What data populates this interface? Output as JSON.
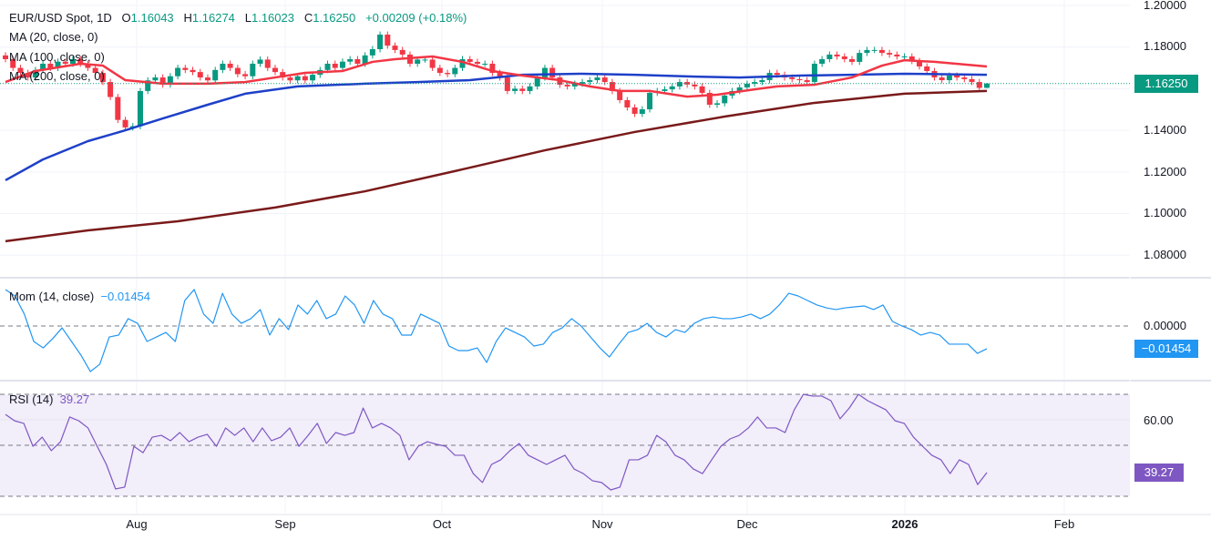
{
  "header": {
    "symbol": "EUR/USD Spot, 1D",
    "open_label": "O",
    "open": "1.16043",
    "high_label": "H",
    "high": "1.16274",
    "low_label": "L",
    "low": "1.16023",
    "close_label": "C",
    "close": "1.16250",
    "change": "+0.00209 (+0.18%)"
  },
  "indicators": {
    "ma20": "MA (20, close, 0)",
    "ma100": "MA (100, close, 0)",
    "ma200": "MA (200, close, 0)",
    "mom": "Mom (14, close)",
    "mom_value": "−0.01454",
    "rsi": "RSI (14)",
    "rsi_value": "39.27"
  },
  "colors": {
    "up": "#089981",
    "down": "#f23645",
    "ma20": "#f23645",
    "ma100": "#1e40c8",
    "ma200": "#7a1a1a",
    "mom": "#2196f3",
    "rsi": "#7e57c2",
    "rsi_band": "#f2eefa"
  },
  "chart_data": [
    {
      "type": "candlestick",
      "title": "EUR/USD Spot, 1D",
      "ylim": [
        1.07,
        1.2
      ],
      "y_ticks": [
        "1.20000",
        "1.18000",
        "1.14000",
        "1.12000",
        "1.10000",
        "1.08000"
      ],
      "last_price_label": "1.16250",
      "last_candle": {
        "open": 1.16043,
        "high": 1.16274,
        "low": 1.16023,
        "close": 1.1625
      },
      "closes": [
        1.1742,
        1.17,
        1.1676,
        1.1654,
        1.169,
        1.172,
        1.17,
        1.173,
        1.172,
        1.1742,
        1.172,
        1.17,
        1.1676,
        1.1632,
        1.156,
        1.145,
        1.1414,
        1.142,
        1.1589,
        1.164,
        1.1654,
        1.162,
        1.166,
        1.17,
        1.169,
        1.168,
        1.1654,
        1.164,
        1.169,
        1.172,
        1.17,
        1.167,
        1.166,
        1.172,
        1.174,
        1.17,
        1.168,
        1.1654,
        1.164,
        1.166,
        1.164,
        1.1667,
        1.169,
        1.172,
        1.17,
        1.173,
        1.1742,
        1.172,
        1.176,
        1.179,
        1.186,
        1.1807,
        1.1786,
        1.1764,
        1.172,
        1.174,
        1.174,
        1.17,
        1.1676,
        1.167,
        1.17,
        1.1742,
        1.1729,
        1.172,
        1.172,
        1.1676,
        1.1654,
        1.1589,
        1.16,
        1.1589,
        1.1611,
        1.1654,
        1.17,
        1.1654,
        1.1619,
        1.1611,
        1.1624,
        1.1632,
        1.1641,
        1.1654,
        1.1632,
        1.1589,
        1.1545,
        1.151,
        1.1479,
        1.1501,
        1.158,
        1.1589,
        1.1597,
        1.1611,
        1.1632,
        1.162,
        1.1611,
        1.158,
        1.1523,
        1.153,
        1.1567,
        1.1589,
        1.1606,
        1.1624,
        1.1632,
        1.1641,
        1.1676,
        1.1667,
        1.1654,
        1.1646,
        1.1641,
        1.1632,
        1.172,
        1.1742,
        1.1764,
        1.1755,
        1.1742,
        1.1729,
        1.1772,
        1.1786,
        1.1786,
        1.1772,
        1.1764,
        1.1755,
        1.1755,
        1.1733,
        1.1707,
        1.1685,
        1.1654,
        1.1641,
        1.1663,
        1.1654,
        1.1646,
        1.1632,
        1.1604,
        1.1625
      ],
      "ma20": [
        [
          0,
          1.1632
        ],
        [
          4,
          1.1685
        ],
        [
          10,
          1.172
        ],
        [
          13,
          1.1711
        ],
        [
          16,
          1.1641
        ],
        [
          21,
          1.1624
        ],
        [
          27,
          1.1624
        ],
        [
          32,
          1.1632
        ],
        [
          36,
          1.1654
        ],
        [
          40,
          1.1676
        ],
        [
          45,
          1.1685
        ],
        [
          49,
          1.1729
        ],
        [
          52,
          1.1742
        ],
        [
          57,
          1.1755
        ],
        [
          61,
          1.1729
        ],
        [
          65,
          1.1685
        ],
        [
          69,
          1.1663
        ],
        [
          74,
          1.1641
        ],
        [
          78,
          1.1611
        ],
        [
          82,
          1.1589
        ],
        [
          86,
          1.1589
        ],
        [
          91,
          1.1562
        ],
        [
          95,
          1.1571
        ],
        [
          100,
          1.1597
        ],
        [
          103,
          1.1611
        ],
        [
          108,
          1.1619
        ],
        [
          113,
          1.1654
        ],
        [
          117,
          1.1711
        ],
        [
          120,
          1.1737
        ],
        [
          124,
          1.1729
        ],
        [
          131,
          1.1707
        ]
      ],
      "ma100": [
        [
          0,
          1.116
        ],
        [
          5,
          1.126
        ],
        [
          11,
          1.1348
        ],
        [
          16,
          1.14
        ],
        [
          21,
          1.1457
        ],
        [
          27,
          1.1523
        ],
        [
          32,
          1.1576
        ],
        [
          39,
          1.1611
        ],
        [
          48,
          1.1624
        ],
        [
          55,
          1.1632
        ],
        [
          62,
          1.1641
        ],
        [
          69,
          1.1667
        ],
        [
          77,
          1.1672
        ],
        [
          84,
          1.1667
        ],
        [
          91,
          1.1659
        ],
        [
          98,
          1.1654
        ],
        [
          106,
          1.1663
        ],
        [
          113,
          1.1667
        ],
        [
          120,
          1.1672
        ],
        [
          131,
          1.1667
        ]
      ],
      "ma200": [
        [
          0,
          1.0867
        ],
        [
          11,
          1.0919
        ],
        [
          23,
          1.0963
        ],
        [
          36,
          1.1029
        ],
        [
          48,
          1.1107
        ],
        [
          60,
          1.1204
        ],
        [
          72,
          1.1304
        ],
        [
          84,
          1.1392
        ],
        [
          96,
          1.1466
        ],
        [
          108,
          1.1532
        ],
        [
          120,
          1.1576
        ],
        [
          131,
          1.1589
        ]
      ],
      "x_ticks": [
        "Aug",
        "Sep",
        "Oct",
        "Nov",
        "Dec",
        "2026",
        "Feb"
      ]
    },
    {
      "type": "line",
      "title": "Mom (14, close)",
      "y_ticks": [
        "0.00000"
      ],
      "values": [
        0.0233,
        0.0192,
        0.0076,
        -0.0099,
        -0.014,
        -0.0081,
        -0.0012,
        -0.0099,
        -0.0186,
        -0.0291,
        -0.0244,
        -0.007,
        -0.0058,
        0.0047,
        0.0017,
        -0.0099,
        -0.007,
        -0.0041,
        -0.0099,
        0.0163,
        0.0233,
        0.0076,
        0.0017,
        0.0209,
        0.0076,
        0.0017,
        0.0047,
        0.0105,
        -0.0058,
        0.0047,
        -0.0023,
        0.0134,
        0.0076,
        0.0163,
        0.0047,
        0.0076,
        0.0192,
        0.0134,
        0.0017,
        0.0163,
        0.0076,
        0.0047,
        -0.0058,
        -0.0058,
        0.0076,
        0.0047,
        0.0017,
        -0.0128,
        -0.0157,
        -0.0157,
        -0.014,
        -0.0233,
        -0.0099,
        -0.0012,
        -0.0041,
        -0.007,
        -0.0128,
        -0.0116,
        -0.0041,
        -0.0012,
        0.0047,
        0,
        -0.007,
        -0.014,
        -0.0198,
        -0.0116,
        -0.0041,
        -0.0023,
        0.0017,
        -0.0041,
        -0.007,
        -0.0023,
        -0.0041,
        0.0017,
        0.0047,
        0.0058,
        0.0047,
        0.0047,
        0.0058,
        0.0076,
        0.0047,
        0.0076,
        0.0134,
        0.0209,
        0.0192,
        0.0163,
        0.0134,
        0.0116,
        0.0105,
        0.0116,
        0.0122,
        0.0128,
        0.0105,
        0.0134,
        0.0029,
        0,
        -0.0023,
        -0.0058,
        -0.0041,
        -0.0058,
        -0.0116,
        -0.0116,
        -0.0116,
        -0.0175,
        -0.0145
      ]
    },
    {
      "type": "line",
      "title": "RSI (14)",
      "y_ticks": [
        "60.00"
      ],
      "bands": [
        30,
        50,
        70
      ],
      "values": [
        62.1,
        59.6,
        58.6,
        49.6,
        53.2,
        47.9,
        51.4,
        61.1,
        59.6,
        56.8,
        49.6,
        42.5,
        32.9,
        33.6,
        49.6,
        47.1,
        53.2,
        53.9,
        51.8,
        55,
        51.4,
        53.2,
        54.3,
        49.6,
        56.8,
        53.9,
        56.8,
        51.4,
        56.8,
        51.8,
        53.2,
        56.8,
        49.6,
        53.9,
        58.6,
        50.7,
        55,
        53.9,
        55,
        64.6,
        56.8,
        58.6,
        56.8,
        53.9,
        44.3,
        49.6,
        51.4,
        50.4,
        49.6,
        46.1,
        46.1,
        38.9,
        35.4,
        42.5,
        44.3,
        47.9,
        50.7,
        46.1,
        44.3,
        42.5,
        44.3,
        46.1,
        40.7,
        38.9,
        36.1,
        35.4,
        32.5,
        33.6,
        44.3,
        44.3,
        46.1,
        53.9,
        51.4,
        46.1,
        44.3,
        40.7,
        38.9,
        44.3,
        49.6,
        52.5,
        53.9,
        56.8,
        61.1,
        56.8,
        56.8,
        55,
        63.9,
        70,
        69.3,
        69.3,
        67.5,
        60.4,
        64.6,
        70,
        67.5,
        65.7,
        63.9,
        59.6,
        58.6,
        53.2,
        49.6,
        46.1,
        44.3,
        38.9,
        44.3,
        42.5,
        34.6,
        39.27
      ]
    }
  ]
}
